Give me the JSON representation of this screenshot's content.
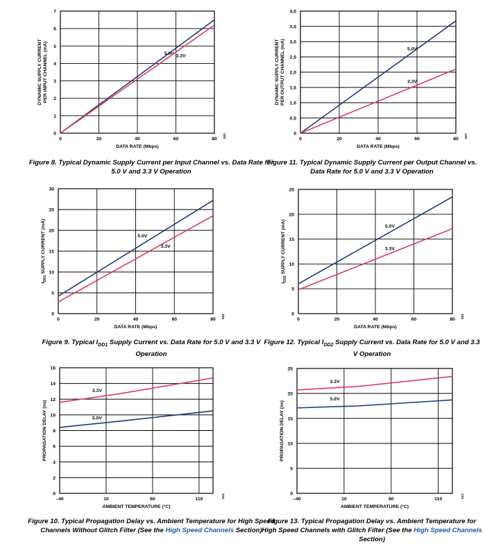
{
  "page": {
    "title": ""
  },
  "colors": {
    "v50": "#1c3a78",
    "v33": "#dc3a5e",
    "grid": "#000000"
  },
  "charts": [
    {
      "id": "fig8",
      "caption_parts": {
        "pre": "Figure 8. Typical Dynamic Supply Current per Input Channel vs. Data Rate for 5.0 V and 3.3 V Operation",
        "sub": "",
        "post": "",
        "link": "",
        "tail": ""
      },
      "ylabel_lines": [
        "DYNAMIC SUPPLY CURRENT",
        "PER INPUT CHANNEL (mA)"
      ],
      "id_code": "020"
    },
    {
      "id": "fig11",
      "caption_parts": {
        "pre": "Figure 11. Typical Dynamic Supply Current per Output Channel vs. Data Rate for 5.0 V and 3.3 V Operation",
        "sub": "",
        "post": "",
        "link": "",
        "tail": ""
      },
      "ylabel_lines": [
        "DYNAMIC SUPPLY CURRENT",
        "PER OUTPUT CHANNEL (mA)"
      ],
      "id_code": "021"
    },
    {
      "id": "fig9",
      "caption_parts": {
        "pre": "Figure 9. Typical I",
        "sub": "DD1",
        "post": " Supply Current vs. Data Rate for 5.0 V and 3.3 V Operation",
        "link": "",
        "tail": ""
      },
      "ylabel_lines": [
        "IDD1 SUPPLY CURRENT (mA)"
      ],
      "id_code": "022"
    },
    {
      "id": "fig12",
      "caption_parts": {
        "pre": "Figure 12. Typical I",
        "sub": "DD2",
        "post": " Supply Current vs. Data Rate for 5.0 V and 3.3 V Operation",
        "link": "",
        "tail": ""
      },
      "ylabel_lines": [
        "IDD2 SUPPLY CURRENT (mA)"
      ],
      "id_code": "023"
    },
    {
      "id": "fig10",
      "caption_parts": {
        "pre": "Figure 10. Typical Propagation Delay vs. Ambient Temperature for High Speed Channels Without Glitch Filter (See the ",
        "sub": "",
        "post": "",
        "link": "High Speed Channels",
        "tail": " Section)"
      },
      "ylabel_lines": [
        "PROPAGATION DELAY (ns)"
      ],
      "id_code": "012"
    },
    {
      "id": "fig13",
      "caption_parts": {
        "pre": "Figure 13. Typical Propagation Delay vs. Ambient Temperature for High Speed Channels with Glitch Filter (See the ",
        "sub": "",
        "post": "",
        "link": "High Speed Channels",
        "tail": " Section)"
      },
      "ylabel_lines": [
        "PROPAGATION DELAY (ns)"
      ],
      "id_code": "013"
    }
  ],
  "chart_data": [
    {
      "type": "line",
      "xlabel": "DATA RATE (Mbps)",
      "ylabel": "DYNAMIC SUPPLY CURRENT PER INPUT CHANNEL (mA)",
      "xlim": [
        0,
        80
      ],
      "ylim": [
        0,
        7
      ],
      "xticks": [
        0,
        20,
        40,
        60,
        80
      ],
      "yticks": [
        0,
        1,
        2,
        3,
        4,
        5,
        6,
        7
      ],
      "xtick_labels": [
        "0",
        "20",
        "40",
        "60",
        "80"
      ],
      "ytick_labels": [
        "0",
        "1",
        "2",
        "3",
        "4",
        "5",
        "6",
        "7"
      ],
      "grid": true,
      "series": [
        {
          "name": "5.0V",
          "color": "#1c3a78",
          "x": [
            0,
            80
          ],
          "y": [
            0,
            6.5
          ],
          "label_at": [
            54,
            4.5
          ]
        },
        {
          "name": "3.3V",
          "color": "#dc3a5e",
          "x": [
            0,
            80
          ],
          "y": [
            0,
            6.2
          ],
          "label_at": [
            60,
            4.35
          ]
        }
      ]
    },
    {
      "type": "line",
      "xlabel": "DATA RATE (Mbps)",
      "ylabel": "DYNAMIC SUPPLY CURRENT PER OUTPUT CHANNEL (mA)",
      "xlim": [
        0,
        80
      ],
      "ylim": [
        0,
        4.0
      ],
      "xticks": [
        0,
        20,
        40,
        60,
        80
      ],
      "yticks": [
        0,
        0.5,
        1.0,
        1.5,
        2.0,
        2.5,
        3.0,
        3.5,
        4.0
      ],
      "xtick_labels": [
        "0",
        "20",
        "40",
        "60",
        "80"
      ],
      "ytick_labels": [
        "0",
        "0,5",
        "1,0",
        "1,5",
        "2,0",
        "2,5",
        "3,0",
        "3,5",
        "4,0"
      ],
      "grid": true,
      "series": [
        {
          "name": "5,0V",
          "color": "#1c3a78",
          "x": [
            0,
            80
          ],
          "y": [
            0,
            3.68
          ],
          "label_at": [
            55,
            2.72
          ]
        },
        {
          "name": "3,3V",
          "color": "#dc3a5e",
          "x": [
            0,
            80
          ],
          "y": [
            0,
            2.1
          ],
          "label_at": [
            55,
            1.65
          ]
        }
      ]
    },
    {
      "type": "line",
      "xlabel": "DATA RATE (Mbps)",
      "ylabel": "IDD1 SUPPLY CURRENT (mA)",
      "xlim": [
        0,
        80
      ],
      "ylim": [
        0,
        30
      ],
      "xticks": [
        0,
        20,
        40,
        60,
        80
      ],
      "yticks": [
        0,
        5,
        10,
        15,
        20,
        25,
        30
      ],
      "xtick_labels": [
        "0",
        "20",
        "40",
        "60",
        "80"
      ],
      "ytick_labels": [
        "0",
        "5",
        "10",
        "15",
        "20",
        "25",
        "30"
      ],
      "grid": true,
      "series": [
        {
          "name": "5.0V",
          "color": "#1c3a78",
          "x": [
            0,
            80
          ],
          "y": [
            4.2,
            27.2
          ],
          "label_at": [
            41,
            18.3
          ]
        },
        {
          "name": "3.3V",
          "color": "#dc3a5e",
          "x": [
            0,
            80
          ],
          "y": [
            2.8,
            23.5
          ],
          "label_at": [
            53,
            15.8
          ]
        }
      ]
    },
    {
      "type": "line",
      "xlabel": "DATA RATE (Mbps)",
      "ylabel": "IDD2 SUPPLY CURRENT (mA)",
      "xlim": [
        0,
        80
      ],
      "ylim": [
        0,
        25
      ],
      "xticks": [
        0,
        20,
        40,
        60,
        80
      ],
      "yticks": [
        0,
        5,
        10,
        15,
        20,
        25
      ],
      "xtick_labels": [
        "0",
        "20",
        "40",
        "60",
        "80"
      ],
      "ytick_labels": [
        "0",
        "5",
        "10",
        "15",
        "20",
        "25"
      ],
      "grid": true,
      "series": [
        {
          "name": "5.0V",
          "color": "#1c3a78",
          "x": [
            0,
            80
          ],
          "y": [
            6.0,
            23.5
          ],
          "label_at": [
            45,
            17.3
          ]
        },
        {
          "name": "3.3V",
          "color": "#dc3a5e",
          "x": [
            0,
            80
          ],
          "y": [
            4.8,
            17.1
          ],
          "label_at": [
            45,
            12.8
          ]
        }
      ]
    },
    {
      "type": "line",
      "xlabel": "AMBIENT TEMPERATURE (°C)",
      "ylabel": "PROPAGATION DELAY (ns)",
      "xlim": [
        -40,
        125
      ],
      "ylim": [
        0,
        16
      ],
      "xticks": [
        -40,
        10,
        60,
        110
      ],
      "yticks": [
        0,
        2,
        4,
        6,
        8,
        10,
        12,
        14,
        16
      ],
      "xtick_labels": [
        "–40",
        "10",
        "60",
        "110"
      ],
      "ytick_labels": [
        "0",
        "2",
        "4",
        "6",
        "8",
        "10",
        "12",
        "14",
        "16"
      ],
      "grid": true,
      "series": [
        {
          "name": "5.0V",
          "color": "#1c3a78",
          "x": [
            -40,
            25,
            125
          ],
          "y": [
            8.4,
            9.2,
            10.5
          ],
          "label_at": [
            -5,
            9.4
          ]
        },
        {
          "name": "3.3V",
          "color": "#dc3a5e",
          "x": [
            -40,
            25,
            125
          ],
          "y": [
            11.6,
            12.7,
            14.7
          ],
          "label_at": [
            -5,
            12.9
          ]
        }
      ]
    },
    {
      "type": "line",
      "xlabel": "AMBIENT TEMPERATURE (°C)",
      "ylabel": "PROPAGATION DELAY (ns)",
      "xlim": [
        -40,
        125
      ],
      "ylim": [
        0,
        25
      ],
      "xticks": [
        -40,
        10,
        60,
        110
      ],
      "yticks": [
        0,
        5,
        10,
        15,
        20,
        25
      ],
      "xtick_labels": [
        "–40",
        "10",
        "60",
        "110"
      ],
      "ytick_labels": [
        "0",
        "5",
        "10",
        "15",
        "20",
        "25"
      ],
      "grid": true,
      "series": [
        {
          "name": "5.0V",
          "color": "#1c3a78",
          "x": [
            -40,
            25,
            125
          ],
          "y": [
            17.1,
            17.5,
            18.7
          ],
          "label_at": [
            -5,
            18.6
          ]
        },
        {
          "name": "3.3V",
          "color": "#dc3a5e",
          "x": [
            -40,
            25,
            125
          ],
          "y": [
            20.7,
            21.4,
            23.4
          ],
          "label_at": [
            -5,
            22.1
          ]
        }
      ]
    }
  ]
}
